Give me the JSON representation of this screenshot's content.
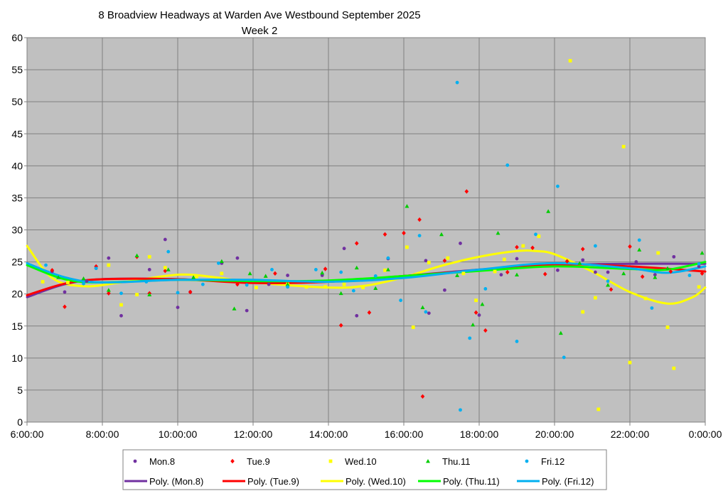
{
  "chart_data": {
    "type": "scatter",
    "title": "8 Broadview Headways at Warden Ave Westbound September 2025",
    "subtitle": "Week 2",
    "xlabel": "",
    "ylabel": "",
    "xlim": [
      "6:00:00",
      "0:00:00"
    ],
    "ylim": [
      0,
      60
    ],
    "x_ticks": [
      "6:00:00",
      "8:00:00",
      "10:00:00",
      "12:00:00",
      "14:00:00",
      "16:00:00",
      "18:00:00",
      "20:00:00",
      "22:00:00",
      "0:00:00"
    ],
    "y_ticks": [
      "0",
      "5",
      "10",
      "15",
      "20",
      "25",
      "30",
      "35",
      "40",
      "45",
      "50",
      "55",
      "60"
    ],
    "grid": true,
    "plot_background": "#c0c0c0",
    "legend_position": "bottom",
    "series": [
      {
        "name": "Mon.8",
        "marker": "circle",
        "color": "#7030a0",
        "points": [
          [
            "6:40",
            23.5
          ],
          [
            "7:00",
            20.3
          ],
          [
            "7:35",
            22.0
          ],
          [
            "7:50",
            24.0
          ],
          [
            "8:10",
            25.6
          ],
          [
            "8:30",
            16.6
          ],
          [
            "9:15",
            23.8
          ],
          [
            "9:40",
            28.5
          ],
          [
            "10:00",
            17.9
          ],
          [
            "10:20",
            20.3
          ],
          [
            "11:10",
            24.8
          ],
          [
            "11:35",
            25.6
          ],
          [
            "11:50",
            17.4
          ],
          [
            "12:25",
            21.5
          ],
          [
            "12:55",
            22.9
          ],
          [
            "13:50",
            22.9
          ],
          [
            "14:25",
            27.1
          ],
          [
            "14:45",
            16.6
          ],
          [
            "15:35",
            25.5
          ],
          [
            "16:35",
            25.2
          ],
          [
            "16:40",
            17.0
          ],
          [
            "17:05",
            20.6
          ],
          [
            "17:30",
            27.9
          ],
          [
            "18:00",
            16.7
          ],
          [
            "18:35",
            23.0
          ],
          [
            "19:00",
            25.5
          ],
          [
            "20:05",
            23.7
          ],
          [
            "20:45",
            25.3
          ],
          [
            "21:05",
            23.4
          ],
          [
            "21:25",
            23.4
          ],
          [
            "22:10",
            25.0
          ],
          [
            "22:40",
            23.0
          ],
          [
            "23:10",
            25.8
          ],
          [
            "23:50",
            24.3
          ]
        ]
      },
      {
        "name": "Tue.9",
        "marker": "diamond",
        "color": "#ff0000",
        "points": [
          [
            "6:40",
            23.7
          ],
          [
            "7:00",
            18.0
          ],
          [
            "7:50",
            24.3
          ],
          [
            "8:10",
            20.1
          ],
          [
            "8:55",
            25.8
          ],
          [
            "9:15",
            20.1
          ],
          [
            "9:40",
            23.6
          ],
          [
            "10:20",
            20.3
          ],
          [
            "11:35",
            21.5
          ],
          [
            "12:35",
            23.2
          ],
          [
            "13:55",
            23.9
          ],
          [
            "14:20",
            15.1
          ],
          [
            "14:45",
            27.9
          ],
          [
            "15:05",
            17.1
          ],
          [
            "15:30",
            29.3
          ],
          [
            "16:00",
            29.5
          ],
          [
            "16:25",
            31.6
          ],
          [
            "16:30",
            4.0
          ],
          [
            "17:05",
            25.2
          ],
          [
            "17:40",
            36.0
          ],
          [
            "17:55",
            17.1
          ],
          [
            "18:10",
            14.3
          ],
          [
            "18:45",
            23.4
          ],
          [
            "19:00",
            27.3
          ],
          [
            "19:25",
            27.2
          ],
          [
            "19:45",
            23.1
          ],
          [
            "20:20",
            25.1
          ],
          [
            "20:45",
            27.0
          ],
          [
            "21:30",
            20.7
          ],
          [
            "22:00",
            27.4
          ],
          [
            "22:20",
            22.7
          ],
          [
            "23:05",
            23.5
          ],
          [
            "23:55",
            23.2
          ]
        ]
      },
      {
        "name": "Wed.10",
        "marker": "square",
        "color": "#ffff00",
        "points": [
          [
            "6:25",
            21.9
          ],
          [
            "7:05",
            21.8
          ],
          [
            "8:10",
            24.5
          ],
          [
            "8:30",
            18.3
          ],
          [
            "8:55",
            19.9
          ],
          [
            "9:15",
            25.8
          ],
          [
            "9:40",
            24.1
          ],
          [
            "10:30",
            22.7
          ],
          [
            "11:10",
            23.2
          ],
          [
            "12:05",
            21.0
          ],
          [
            "12:55",
            21.5
          ],
          [
            "13:25",
            21.1
          ],
          [
            "13:55",
            21.1
          ],
          [
            "14:25",
            21.5
          ],
          [
            "14:55",
            21.0
          ],
          [
            "15:30",
            23.7
          ],
          [
            "16:05",
            27.3
          ],
          [
            "16:15",
            14.8
          ],
          [
            "16:40",
            24.9
          ],
          [
            "17:10",
            25.6
          ],
          [
            "17:35",
            23.2
          ],
          [
            "17:55",
            19.0
          ],
          [
            "18:25",
            23.5
          ],
          [
            "18:40",
            25.4
          ],
          [
            "19:10",
            27.5
          ],
          [
            "19:35",
            29.0
          ],
          [
            "20:25",
            56.4
          ],
          [
            "20:45",
            17.2
          ],
          [
            "21:05",
            19.4
          ],
          [
            "21:10",
            2.0
          ],
          [
            "21:50",
            43.0
          ],
          [
            "22:00",
            9.3
          ],
          [
            "22:25",
            19.3
          ],
          [
            "22:45",
            26.4
          ],
          [
            "23:00",
            14.8
          ],
          [
            "23:10",
            8.4
          ],
          [
            "23:50",
            21.1
          ]
        ]
      },
      {
        "name": "Thu.11",
        "marker": "triangle",
        "color": "#00cc00",
        "points": [
          [
            "6:50",
            22.6
          ],
          [
            "7:30",
            22.4
          ],
          [
            "8:10",
            20.6
          ],
          [
            "8:55",
            26.0
          ],
          [
            "9:15",
            19.9
          ],
          [
            "9:45",
            23.8
          ],
          [
            "10:25",
            22.6
          ],
          [
            "11:10",
            25.1
          ],
          [
            "11:30",
            17.7
          ],
          [
            "11:55",
            23.2
          ],
          [
            "12:20",
            22.8
          ],
          [
            "12:55",
            21.5
          ],
          [
            "13:50",
            23.3
          ],
          [
            "14:20",
            20.1
          ],
          [
            "14:45",
            24.1
          ],
          [
            "15:15",
            20.9
          ],
          [
            "15:35",
            23.8
          ],
          [
            "16:05",
            33.7
          ],
          [
            "16:30",
            17.9
          ],
          [
            "17:00",
            29.3
          ],
          [
            "17:25",
            22.9
          ],
          [
            "17:50",
            15.2
          ],
          [
            "18:05",
            18.4
          ],
          [
            "18:30",
            29.5
          ],
          [
            "19:00",
            23.0
          ],
          [
            "19:50",
            32.9
          ],
          [
            "20:10",
            13.9
          ],
          [
            "20:40",
            24.8
          ],
          [
            "21:25",
            21.4
          ],
          [
            "21:50",
            23.2
          ],
          [
            "22:15",
            26.9
          ],
          [
            "22:40",
            22.6
          ],
          [
            "23:00",
            24.0
          ],
          [
            "23:55",
            26.4
          ]
        ]
      },
      {
        "name": "Fri.12",
        "marker": "circle",
        "color": "#00b0f0",
        "points": [
          [
            "6:30",
            24.5
          ],
          [
            "7:30",
            21.6
          ],
          [
            "7:50",
            24.0
          ],
          [
            "8:30",
            20.1
          ],
          [
            "9:10",
            21.9
          ],
          [
            "9:45",
            26.6
          ],
          [
            "10:00",
            20.2
          ],
          [
            "10:40",
            21.5
          ],
          [
            "11:05",
            24.8
          ],
          [
            "11:50",
            21.4
          ],
          [
            "12:30",
            23.8
          ],
          [
            "12:55",
            21.1
          ],
          [
            "13:40",
            23.8
          ],
          [
            "14:20",
            23.4
          ],
          [
            "14:40",
            20.5
          ],
          [
            "15:15",
            22.8
          ],
          [
            "15:35",
            25.6
          ],
          [
            "15:55",
            19.0
          ],
          [
            "16:25",
            29.1
          ],
          [
            "16:35",
            17.2
          ],
          [
            "17:25",
            53.0
          ],
          [
            "17:30",
            1.9
          ],
          [
            "17:45",
            13.1
          ],
          [
            "18:10",
            20.8
          ],
          [
            "18:45",
            40.1
          ],
          [
            "19:00",
            12.6
          ],
          [
            "19:30",
            29.3
          ],
          [
            "20:05",
            36.8
          ],
          [
            "20:15",
            10.1
          ],
          [
            "21:05",
            27.5
          ],
          [
            "21:25",
            22.0
          ],
          [
            "22:15",
            28.4
          ],
          [
            "22:35",
            17.8
          ],
          [
            "23:35",
            22.9
          ],
          [
            "23:50",
            24.7
          ]
        ]
      }
    ],
    "trendlines": [
      {
        "name": "Poly. (Mon.8)",
        "color": "#7030a0",
        "points": [
          [
            "6:00",
            19.5
          ],
          [
            "7:00",
            21.5
          ],
          [
            "8:00",
            22.3
          ],
          [
            "10:00",
            22.3
          ],
          [
            "12:00",
            21.8
          ],
          [
            "14:00",
            21.9
          ],
          [
            "16:00",
            22.8
          ],
          [
            "18:00",
            23.8
          ],
          [
            "20:00",
            24.5
          ],
          [
            "22:00",
            24.7
          ],
          [
            "24:00",
            24.7
          ]
        ]
      },
      {
        "name": "Poly. (Tue.9)",
        "color": "#ff0000",
        "points": [
          [
            "6:00",
            19.8
          ],
          [
            "7:00",
            21.6
          ],
          [
            "8:00",
            22.3
          ],
          [
            "10:00",
            22.3
          ],
          [
            "12:00",
            21.7
          ],
          [
            "14:00",
            21.9
          ],
          [
            "16:00",
            22.8
          ],
          [
            "18:00",
            23.7
          ],
          [
            "20:00",
            24.6
          ],
          [
            "22:00",
            24.3
          ],
          [
            "24:00",
            23.5
          ]
        ]
      },
      {
        "name": "Poly. (Wed.10)",
        "color": "#ffff00",
        "points": [
          [
            "6:00",
            27.5
          ],
          [
            "6:40",
            22.5
          ],
          [
            "7:30",
            21.2
          ],
          [
            "8:30",
            21.8
          ],
          [
            "10:00",
            23.0
          ],
          [
            "11:00",
            22.6
          ],
          [
            "12:00",
            21.8
          ],
          [
            "14:00",
            21.0
          ],
          [
            "15:00",
            21.3
          ],
          [
            "16:00",
            22.6
          ],
          [
            "17:00",
            24.4
          ],
          [
            "18:00",
            25.8
          ],
          [
            "19:00",
            26.7
          ],
          [
            "19:30",
            26.7
          ],
          [
            "20:00",
            26.2
          ],
          [
            "21:00",
            23.5
          ],
          [
            "22:00",
            20.3
          ],
          [
            "23:00",
            18.5
          ],
          [
            "23:40",
            19.5
          ],
          [
            "24:00",
            21.0
          ]
        ]
      },
      {
        "name": "Poly. (Thu.11)",
        "color": "#00ff00",
        "points": [
          [
            "6:00",
            24.5
          ],
          [
            "7:00",
            22.3
          ],
          [
            "8:00",
            21.8
          ],
          [
            "10:00",
            22.2
          ],
          [
            "12:00",
            22.0
          ],
          [
            "14:00",
            22.1
          ],
          [
            "16:00",
            22.8
          ],
          [
            "18:00",
            23.6
          ],
          [
            "20:00",
            24.3
          ],
          [
            "22:00",
            23.9
          ],
          [
            "23:00",
            23.8
          ],
          [
            "24:00",
            25.0
          ]
        ]
      },
      {
        "name": "Poly. (Fri.12)",
        "color": "#00b0f0",
        "points": [
          [
            "6:00",
            24.8
          ],
          [
            "7:00",
            22.6
          ],
          [
            "8:00",
            21.8
          ],
          [
            "10:00",
            22.2
          ],
          [
            "12:00",
            22.2
          ],
          [
            "14:00",
            21.9
          ],
          [
            "16:00",
            22.5
          ],
          [
            "18:00",
            23.8
          ],
          [
            "20:00",
            24.8
          ],
          [
            "22:00",
            24.0
          ],
          [
            "23:00",
            23.3
          ],
          [
            "24:00",
            24.3
          ]
        ]
      }
    ]
  }
}
